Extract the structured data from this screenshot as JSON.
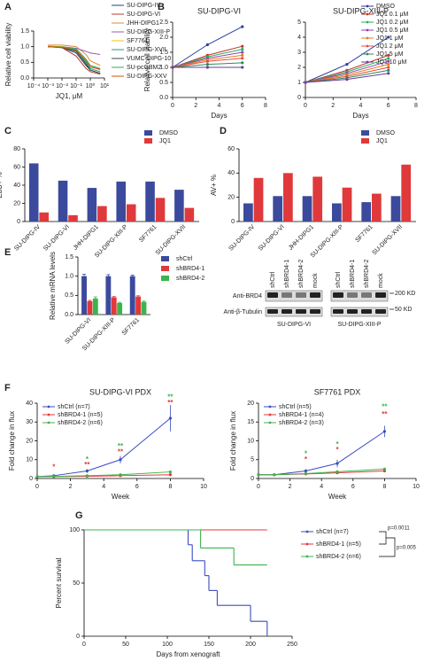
{
  "chart_data": [
    {
      "type": "line",
      "panel": "A",
      "xlog": true,
      "xlabel": "JQ1, μM",
      "ylabel": "Relative cell viability",
      "legend": "right",
      "x": [
        0.001,
        0.01,
        0.1,
        0.5,
        1,
        5
      ],
      "xlim": [
        0.0001,
        10
      ],
      "xticks": [
        {
          "value": 0.0001,
          "label": "10⁻⁴"
        },
        {
          "value": 0.001,
          "label": "10⁻³"
        },
        {
          "value": 0.01,
          "label": "10⁻²"
        },
        {
          "value": 0.1,
          "label": "10⁻¹"
        },
        {
          "value": 1,
          "label": "10⁰"
        },
        {
          "value": 10,
          "label": "10¹"
        }
      ],
      "ylim": [
        0,
        1.5
      ],
      "yticks": [
        {
          "value": 0,
          "label": "0.0"
        },
        {
          "value": 0.5,
          "label": "0.5"
        },
        {
          "value": 1,
          "label": "1.0"
        },
        {
          "value": 1.5,
          "label": "1.5"
        }
      ],
      "series": [
        {
          "name": "SU-DIPG-IV",
          "color": "#2c3e7a",
          "values": [
            1.0,
            0.98,
            0.85,
            0.45,
            0.25,
            0.15
          ]
        },
        {
          "name": "SU-DIPG-VI",
          "color": "#c0392b",
          "values": [
            1.0,
            0.97,
            0.7,
            0.3,
            0.2,
            0.12
          ]
        },
        {
          "name": "JHH-DIPG1",
          "color": "#e08a3c",
          "values": [
            1.05,
            1.05,
            1.0,
            0.75,
            0.55,
            0.4
          ]
        },
        {
          "name": "SU-DIPG-XIII-P",
          "color": "#9b59b6",
          "values": [
            1.0,
            1.0,
            0.95,
            0.85,
            0.8,
            0.75
          ]
        },
        {
          "name": "SF7761",
          "color": "#f1c40f",
          "values": [
            1.02,
            1.0,
            0.92,
            0.55,
            0.4,
            0.25
          ]
        },
        {
          "name": "SU-DIPG-XVII",
          "color": "#16a085",
          "values": [
            1.0,
            0.98,
            0.9,
            0.5,
            0.3,
            0.2
          ]
        },
        {
          "name": "VUMC-DIPG-10",
          "color": "#34495e",
          "values": [
            1.0,
            0.97,
            0.8,
            0.4,
            0.25,
            0.15
          ]
        },
        {
          "name": "SU-pcGBM2",
          "color": "#27ae60",
          "values": [
            1.0,
            0.99,
            0.93,
            0.6,
            0.4,
            0.3
          ]
        },
        {
          "name": "SU-DIPG-XXV",
          "color": "#d35400",
          "values": [
            1.0,
            0.98,
            0.88,
            0.55,
            0.35,
            0.28
          ]
        }
      ]
    },
    {
      "type": "line",
      "panel": "B",
      "title": "SU-DIPG-VI",
      "xlabel": "Days",
      "ylabel": "Relative cell viability",
      "markers": true,
      "x": [
        0,
        3,
        6
      ],
      "xlim": [
        0,
        8
      ],
      "xticks": [
        0,
        2,
        4,
        6,
        8
      ],
      "ylim": [
        0,
        2.5
      ],
      "yticks": [
        {
          "value": 0,
          "label": "0.0"
        },
        {
          "value": 0.5,
          "label": "0.5"
        },
        {
          "value": 1,
          "label": "1.0"
        },
        {
          "value": 1.5,
          "label": "1.5"
        },
        {
          "value": 2,
          "label": "2.0"
        },
        {
          "value": 2.5,
          "label": "2.5"
        }
      ],
      "series": [
        {
          "color": "#2c3e9e",
          "values": [
            1,
            1.75,
            2.35
          ]
        },
        {
          "color": "#c0392b",
          "values": [
            1,
            1.4,
            1.7
          ]
        },
        {
          "color": "#27ae60",
          "values": [
            1,
            1.35,
            1.6
          ]
        },
        {
          "color": "#8e44ad",
          "values": [
            1,
            1.3,
            1.5
          ]
        },
        {
          "color": "#e67e22",
          "values": [
            1,
            1.25,
            1.4
          ]
        },
        {
          "color": "#e74c3c",
          "values": [
            1,
            1.2,
            1.3
          ]
        },
        {
          "color": "#2e8b57",
          "values": [
            1,
            1.1,
            1.15
          ]
        },
        {
          "color": "#6a3d9a",
          "values": [
            1,
            1.0,
            1.0
          ]
        }
      ]
    },
    {
      "type": "line",
      "title": "SU-DIPG-XIII-P",
      "xlabel": "Days",
      "markers": true,
      "legend": "upper-right",
      "x": [
        0,
        3,
        6
      ],
      "xlim": [
        0,
        8
      ],
      "xticks": [
        0,
        2,
        4,
        6,
        8
      ],
      "ylim": [
        0,
        5
      ],
      "yticks": [
        0,
        1,
        2,
        3,
        4,
        5
      ],
      "series": [
        {
          "name": "DMSO",
          "color": "#2c3e9e",
          "values": [
            1,
            2.2,
            4
          ]
        },
        {
          "name": "JQ1 0.1 μM",
          "color": "#c0392b",
          "values": [
            1,
            1.8,
            2.8
          ]
        },
        {
          "name": "JQ1 0.2 μM",
          "color": "#27ae60",
          "values": [
            1,
            1.7,
            2.6
          ]
        },
        {
          "name": "JQ1 0.5 μM",
          "color": "#8e44ad",
          "values": [
            1,
            1.6,
            2.4
          ]
        },
        {
          "name": "JQ1 1 μM",
          "color": "#e67e22",
          "values": [
            1,
            1.5,
            2.2
          ]
        },
        {
          "name": "JQ1 2 μM",
          "color": "#e74c3c",
          "values": [
            1,
            1.4,
            2
          ]
        },
        {
          "name": "JQ1 5 μM",
          "color": "#2e8b57",
          "values": [
            1,
            1.3,
            1.8
          ]
        },
        {
          "name": "JQ1 10 μM",
          "color": "#6a3d9a",
          "values": [
            1,
            1.2,
            1.6
          ]
        }
      ]
    },
    {
      "type": "bar",
      "panel": "C",
      "ylabel": "EdU+ %",
      "legend": "upper-right",
      "categories": [
        "SU-DIPG-IV",
        "SU-DIPG-VI",
        "JHH-DIPG1",
        "SU-DIPG-XIII-P",
        "SF7761",
        "SU-DIPG-XVII"
      ],
      "ylim": [
        0,
        80
      ],
      "yticks": [
        0,
        20,
        40,
        60,
        80
      ],
      "series": [
        {
          "name": "DMSO",
          "color": "#3b4a9c",
          "values": [
            64,
            45,
            37,
            44,
            44,
            35
          ]
        },
        {
          "name": "JQ1",
          "color": "#e0393b",
          "values": [
            10,
            7,
            17,
            19,
            26,
            15
          ]
        }
      ]
    },
    {
      "type": "bar",
      "panel": "D",
      "ylabel": "AV+ %",
      "legend": "upper-right",
      "categories": [
        "SU-DIPG-IV",
        "SU-DIPG-VI",
        "JHH-DIPG1",
        "SU-DIPG-XIII-P",
        "SF7761",
        "SU-DIPG-XVII"
      ],
      "ylim": [
        0,
        60
      ],
      "yticks": [
        0,
        20,
        40,
        60
      ],
      "series": [
        {
          "name": "DMSO",
          "color": "#3b4a9c",
          "values": [
            15,
            21,
            21,
            15,
            16,
            21
          ]
        },
        {
          "name": "JQ1",
          "color": "#e0393b",
          "values": [
            36,
            40,
            37,
            28,
            23,
            47
          ]
        }
      ]
    },
    {
      "type": "bar",
      "panel": "E",
      "ylabel": "Relative mRNA levels",
      "legend": "right",
      "categories": [
        "SU-DIPG-VI",
        "SU-DIPG-XIII-P",
        "SF7761"
      ],
      "ylim": [
        0,
        1.5
      ],
      "yticks": [
        {
          "value": 0,
          "label": "0.0"
        },
        {
          "value": 0.5,
          "label": "0.5"
        },
        {
          "value": 1,
          "label": "1.0"
        },
        {
          "value": 1.5,
          "label": "1.5"
        }
      ],
      "series": [
        {
          "name": "shCtrl",
          "color": "#3b4a9c",
          "values": [
            1,
            1,
            1
          ],
          "errors": [
            0.05,
            0.04,
            0.03
          ]
        },
        {
          "name": "shBRD4-1",
          "color": "#e0393b",
          "values": [
            0.35,
            0.45,
            0.47
          ],
          "errors": [
            0.02,
            0.02,
            0.02
          ]
        },
        {
          "name": "shBRD4-2",
          "color": "#3cb44b",
          "values": [
            0.42,
            0.3,
            0.33
          ],
          "errors": [
            0.04,
            0.02,
            0.02
          ]
        }
      ]
    },
    {
      "type": "blot",
      "lanes": [
        "shCtrl",
        "shBRD4-1",
        "shBRD4-2",
        "mock"
      ],
      "rows": [
        "Anti-BRD4",
        "Anti-β-Tubulin"
      ],
      "markers": [
        "200 KD",
        "50 KD"
      ],
      "cell_lines": [
        "SU-DIPG-VI",
        "SU-DIPG-XIII-P"
      ]
    },
    {
      "type": "line",
      "panel": "F",
      "title": "SU-DIPG-VI PDX",
      "xlabel": "Week",
      "ylabel": "Fold change in flux",
      "markers": true,
      "legend": "upper-left",
      "x": [
        0,
        1,
        3,
        5,
        8
      ],
      "xlim": [
        0,
        10
      ],
      "xticks": [
        0,
        2,
        4,
        6,
        8,
        10
      ],
      "ylim": [
        0,
        40
      ],
      "yticks": [
        0,
        10,
        20,
        30,
        40
      ],
      "series": [
        {
          "name": "shCtrl (n=7)",
          "color": "#3b4cc0",
          "values": [
            1,
            1.5,
            4,
            10,
            32
          ],
          "errors": [
            0,
            0.5,
            1,
            2,
            7
          ]
        },
        {
          "name": "shBRD4-1 (n=5)",
          "color": "#e0393b",
          "values": [
            1,
            1,
            1.2,
            1.5,
            2
          ]
        },
        {
          "name": "shBRD4-2 (n=6)",
          "color": "#3cb44b",
          "values": [
            1,
            1.1,
            1.5,
            2,
            3.5
          ]
        }
      ],
      "annotations": [
        {
          "text": "*",
          "x": 1,
          "y": 6,
          "color": "#e0393b"
        },
        {
          "text": "*",
          "x": 3,
          "y": 10,
          "color": "#3cb44b"
        },
        {
          "text": "**",
          "x": 3,
          "y": 7,
          "color": "#e0393b"
        },
        {
          "text": "**",
          "x": 5,
          "y": 17,
          "color": "#3cb44b"
        },
        {
          "text": "**",
          "x": 5,
          "y": 14,
          "color": "#e0393b"
        },
        {
          "text": "**",
          "x": 8,
          "y": 43,
          "color": "#3cb44b"
        },
        {
          "text": "**",
          "x": 8,
          "y": 40,
          "color": "#e0393b"
        }
      ]
    },
    {
      "type": "line",
      "title": "SF7761 PDX",
      "xlabel": "Week",
      "ylabel": "Fold change in flux",
      "markers": true,
      "legend": "upper-left",
      "x": [
        0,
        1,
        3,
        5,
        8
      ],
      "xlim": [
        0,
        10
      ],
      "xticks": [
        0,
        2,
        4,
        6,
        8,
        10
      ],
      "ylim": [
        0,
        20
      ],
      "yticks": [
        0,
        5,
        10,
        15,
        20
      ],
      "series": [
        {
          "name": "shCtrl (n=5)",
          "color": "#3b4cc0",
          "values": [
            1,
            1,
            2,
            4,
            12.5
          ],
          "errors": [
            0,
            0.3,
            0.5,
            1,
            1.5
          ]
        },
        {
          "name": "shBRD4-1 (n=4)",
          "color": "#e0393b",
          "values": [
            1,
            1,
            1.2,
            1.5,
            2
          ]
        },
        {
          "name": "shBRD4-2 (n=3)",
          "color": "#3cb44b",
          "values": [
            1,
            1,
            1.3,
            1.8,
            2.5
          ]
        }
      ],
      "annotations": [
        {
          "text": "*",
          "x": 3,
          "y": 6.5,
          "color": "#3cb44b"
        },
        {
          "text": "*",
          "x": 3,
          "y": 5,
          "color": "#e0393b"
        },
        {
          "text": "*",
          "x": 5,
          "y": 9,
          "color": "#3cb44b"
        },
        {
          "text": "*",
          "x": 5,
          "y": 7.5,
          "color": "#e0393b"
        },
        {
          "text": "**",
          "x": 8,
          "y": 19,
          "color": "#3cb44b"
        },
        {
          "text": "**",
          "x": 8,
          "y": 17,
          "color": "#e0393b"
        }
      ]
    },
    {
      "type": "survival",
      "panel": "G",
      "xlabel": "Days from xenograft",
      "ylabel": "Percent survival",
      "legend": "right",
      "xlim": [
        0,
        250
      ],
      "xticks": [
        0,
        50,
        100,
        150,
        200,
        250
      ],
      "ylim": [
        0,
        100
      ],
      "yticks": [
        0,
        50,
        100
      ],
      "series": [
        {
          "name": "shCtrl (n=7)",
          "color": "#3b4cc0",
          "x": [
            0,
            125,
            130,
            145,
            150,
            160,
            200,
            220
          ],
          "values": [
            100,
            86,
            71,
            57,
            43,
            29,
            14,
            0
          ]
        },
        {
          "name": "shBRD4-1 (n=5)",
          "color": "#e0393b",
          "x": [
            0,
            220
          ],
          "values": [
            100,
            100
          ]
        },
        {
          "name": "shBRD4-2 (n=6)",
          "color": "#3cb44b",
          "x": [
            0,
            140,
            180,
            220
          ],
          "values": [
            100,
            83,
            67,
            67
          ]
        }
      ],
      "p_values": [
        "p=0.0011",
        "p=0.005"
      ]
    }
  ]
}
